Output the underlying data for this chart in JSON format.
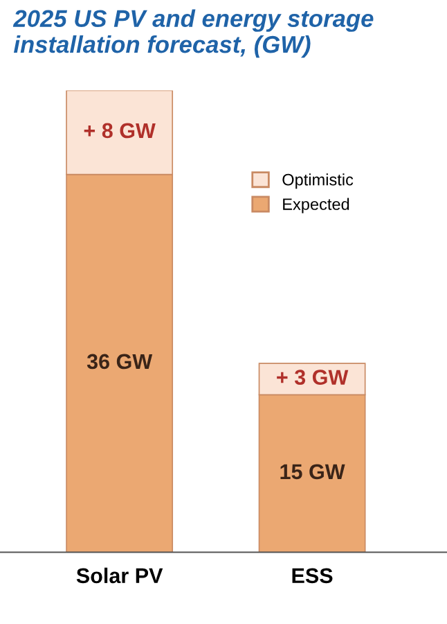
{
  "chart_data": {
    "type": "bar",
    "title": "2025 US PV and energy storage installation forecast, (GW)",
    "categories": [
      "Solar PV",
      "ESS"
    ],
    "stacked": true,
    "legend": "top right",
    "series": [
      {
        "name": "Expected",
        "color": "#eba872",
        "values": [
          36,
          15
        ],
        "value_labels": [
          "36 GW",
          "15 GW"
        ]
      },
      {
        "name": "Optimistic",
        "color": "#fbe4d6",
        "values": [
          8,
          3
        ],
        "value_labels": [
          "+ 8 GW",
          "+ 3 GW"
        ]
      }
    ]
  }
}
